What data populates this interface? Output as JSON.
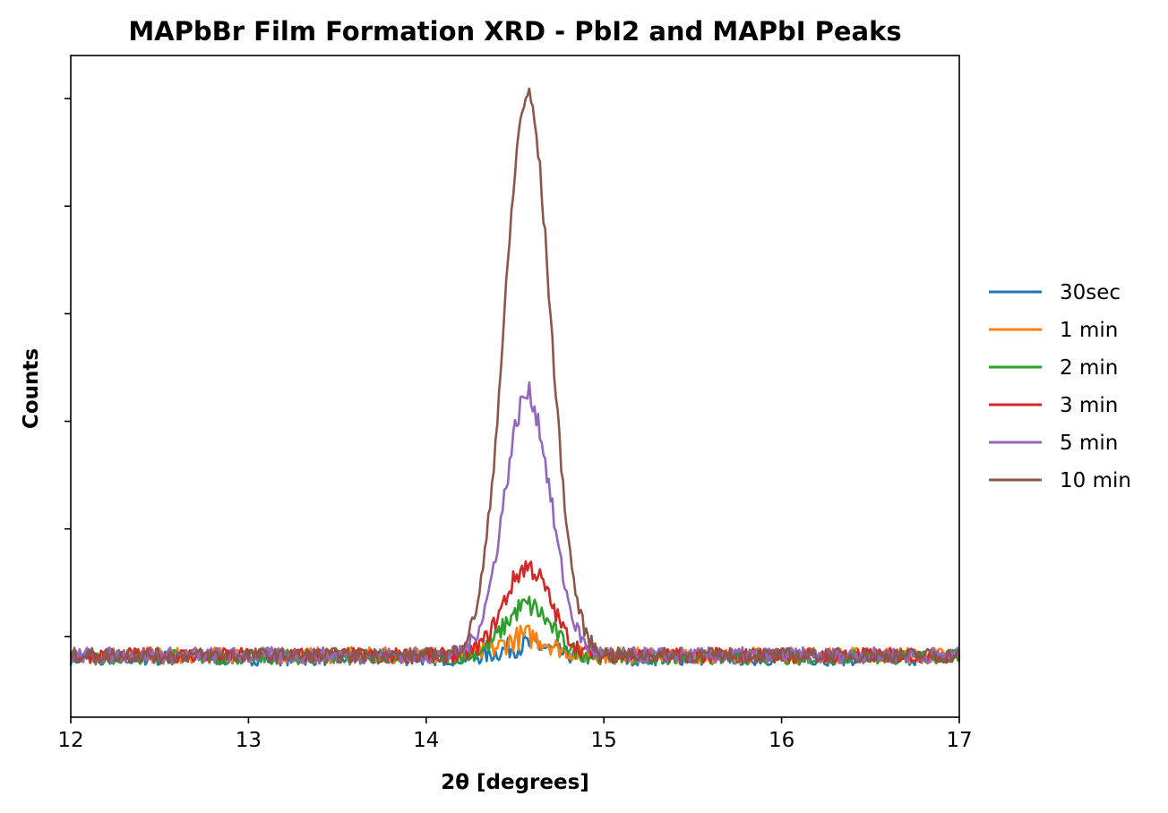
{
  "chart_data": {
    "type": "line",
    "title": "MAPbBr Film Formation XRD - PbI2 and MAPbI Peaks",
    "xlabel": "2θ [degrees]",
    "ylabel": "Counts",
    "xlim": [
      12,
      17
    ],
    "ylim": [
      -0.5,
      11.8
    ],
    "x_ticks": [
      "12",
      "13",
      "14",
      "15",
      "16",
      "17"
    ],
    "y_ticks_unlabeled": [
      1,
      3,
      5,
      7,
      9,
      11
    ],
    "legend_position": "center-right, outside plot",
    "grid": false,
    "peak_center": 14.57,
    "series": [
      {
        "name": "30sec",
        "color": "#1f77b4",
        "baseline": 0.6,
        "peak_height": 0.25,
        "noise": 0.14
      },
      {
        "name": "1 min",
        "color": "#ff7f0e",
        "baseline": 0.65,
        "peak_height": 0.35,
        "noise": 0.15
      },
      {
        "name": "2 min",
        "color": "#2ca02c",
        "baseline": 0.62,
        "peak_height": 0.95,
        "noise": 0.14
      },
      {
        "name": "3 min",
        "color": "#d62728",
        "baseline": 0.65,
        "peak_height": 1.65,
        "noise": 0.14
      },
      {
        "name": "5 min",
        "color": "#9467bd",
        "baseline": 0.65,
        "peak_height": 4.85,
        "noise": 0.15
      },
      {
        "name": "10 min",
        "color": "#8c564b",
        "baseline": 0.65,
        "peak_height": 10.4,
        "noise": 0.14
      }
    ]
  }
}
